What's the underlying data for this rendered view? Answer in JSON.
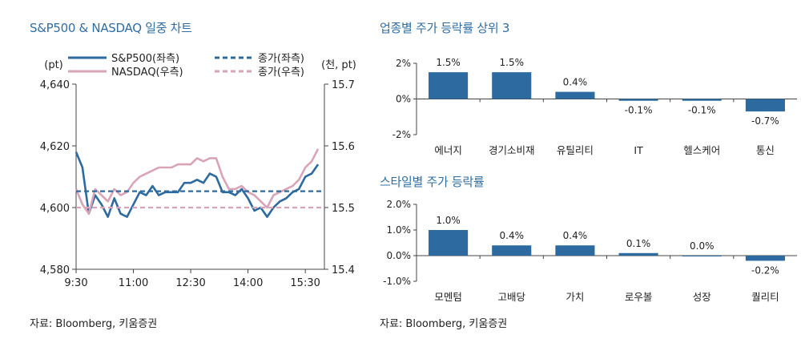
{
  "left_panel": {
    "title": "S&P500 & NASDAQ 일중 차트",
    "source": "자료: Bloomberg, 키움증권"
  },
  "right_panel": {
    "title_top": "업종별 주가 등락률 상위 3",
    "title_bottom": "스타일별 주가 등락률",
    "source": "자료: Bloomberg, 키움증권"
  },
  "colors": {
    "title": "#2f6ea5",
    "sp500": "#2c6aa0",
    "nasdaq": "#d9a3b8",
    "bar": "#2c6aa0"
  },
  "chart_data": [
    {
      "type": "line",
      "left_unit": "(pt)",
      "right_unit": "(천, pt)",
      "x_ticks": [
        "9:30",
        "11:00",
        "12:30",
        "14:00",
        "15:30"
      ],
      "x_range": [
        "9:30",
        "16:00"
      ],
      "ylim_left": [
        4580,
        4640
      ],
      "yticks_left": [
        "4,640",
        "4,620",
        "4,600",
        "4,580"
      ],
      "ylim_right": [
        15.4,
        15.7
      ],
      "yticks_right": [
        "15.7",
        "15.6",
        "15.5",
        "15.4"
      ],
      "grid": false,
      "legend_position": "top",
      "series": [
        {
          "name": "S&P500(좌측)",
          "axis": "left",
          "style": "solid",
          "x": [
            "9:30",
            "9:40",
            "9:50",
            "10:00",
            "10:10",
            "10:20",
            "10:30",
            "10:40",
            "10:50",
            "11:00",
            "11:10",
            "11:20",
            "11:30",
            "11:40",
            "11:50",
            "12:00",
            "12:10",
            "12:20",
            "12:30",
            "12:40",
            "12:50",
            "13:00",
            "13:10",
            "13:20",
            "13:30",
            "13:40",
            "13:50",
            "14:00",
            "14:10",
            "14:20",
            "14:30",
            "14:40",
            "14:50",
            "15:00",
            "15:10",
            "15:20",
            "15:30",
            "15:40",
            "15:50"
          ],
          "y": [
            4618,
            4613,
            4598,
            4604,
            4601,
            4597,
            4603,
            4598,
            4597,
            4601,
            4605,
            4604,
            4607,
            4604,
            4605,
            4605,
            4605,
            4608,
            4608,
            4609,
            4608,
            4611,
            4610,
            4605,
            4605,
            4604,
            4606,
            4603,
            4599,
            4600,
            4597,
            4600,
            4602,
            4603,
            4605,
            4606,
            4610,
            4611,
            4614
          ]
        },
        {
          "name": "NASDAQ(우측)",
          "axis": "right",
          "style": "solid",
          "x": [
            "9:30",
            "9:40",
            "9:50",
            "10:00",
            "10:10",
            "10:20",
            "10:30",
            "10:40",
            "10:50",
            "11:00",
            "11:10",
            "11:20",
            "11:30",
            "11:40",
            "11:50",
            "12:00",
            "12:10",
            "12:20",
            "12:30",
            "12:40",
            "12:50",
            "13:00",
            "13:10",
            "13:20",
            "13:30",
            "13:40",
            "13:50",
            "14:00",
            "14:10",
            "14:20",
            "14:30",
            "14:40",
            "14:50",
            "15:00",
            "15:10",
            "15:20",
            "15:30",
            "15:40",
            "15:50"
          ],
          "y": [
            15.53,
            15.505,
            15.49,
            15.53,
            15.52,
            15.51,
            15.53,
            15.52,
            15.525,
            15.54,
            15.55,
            15.555,
            15.56,
            15.565,
            15.565,
            15.565,
            15.57,
            15.57,
            15.57,
            15.58,
            15.575,
            15.58,
            15.58,
            15.55,
            15.53,
            15.53,
            15.535,
            15.525,
            15.52,
            15.51,
            15.5,
            15.52,
            15.525,
            15.53,
            15.535,
            15.545,
            15.565,
            15.575,
            15.595
          ]
        },
        {
          "name": "종가(좌측)",
          "axis": "left",
          "style": "dashed",
          "y_const": 4605.3
        },
        {
          "name": "종가(우측)",
          "axis": "right",
          "style": "dashed",
          "y_const": 15.5
        }
      ]
    },
    {
      "type": "bar",
      "categories": [
        "에너지",
        "경기소비재",
        "유틸리티",
        "IT",
        "헬스케어",
        "통신"
      ],
      "values": [
        1.5,
        1.5,
        0.4,
        -0.1,
        -0.1,
        -0.7
      ],
      "value_labels": [
        "1.5%",
        "1.5%",
        "0.4%",
        "-0.1%",
        "-0.1%",
        "-0.7%"
      ],
      "ylim": [
        -2,
        2
      ],
      "yticks": [
        "2%",
        "0%",
        "-2%"
      ]
    },
    {
      "type": "bar",
      "categories": [
        "모멘텀",
        "고배당",
        "가치",
        "로우볼",
        "성장",
        "퀄리티"
      ],
      "values": [
        1.0,
        0.4,
        0.4,
        0.1,
        0.0,
        -0.2
      ],
      "value_labels": [
        "1.0%",
        "0.4%",
        "0.4%",
        "0.1%",
        "0.0%",
        "-0.2%"
      ],
      "ylim": [
        -1,
        2
      ],
      "yticks": [
        "2.0%",
        "1.0%",
        "0.0%",
        "-1.0%"
      ]
    }
  ]
}
